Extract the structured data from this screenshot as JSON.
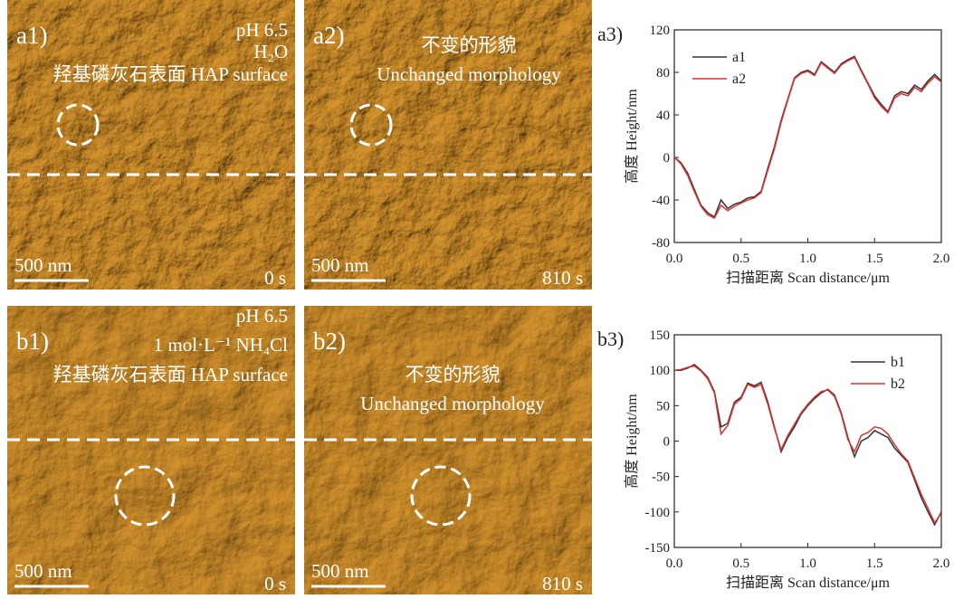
{
  "panels": [
    {
      "label": "a1)",
      "lines": [
        "pH 6.5",
        "H₂O",
        "羟基磷灰石表面 HAP surface"
      ],
      "scale_bar": "500 nm",
      "time": "0 s"
    },
    {
      "label": "a2)",
      "lines": [
        "不变的形貌",
        "Unchanged morphology"
      ],
      "scale_bar": "500 nm",
      "time": "810 s"
    },
    {
      "label": "b1)",
      "lines": [
        "pH 6.5",
        "1 mol·L⁻¹ NH₄Cl",
        "羟基磷灰石表面 HAP surface"
      ],
      "scale_bar": "500 nm",
      "time": "0 s"
    },
    {
      "label": "b2)",
      "lines": [
        "不变的形貌",
        "Unchanged morphology"
      ],
      "scale_bar": "500 nm",
      "time": "810 s"
    }
  ],
  "chart_data": [
    {
      "type": "line",
      "title": "a3)",
      "x_label": "扫描距离 Scan distance/μm",
      "y_label": "高度 Height/nm",
      "x": [
        0,
        0.05,
        0.1,
        0.15,
        0.2,
        0.25,
        0.3,
        0.35,
        0.4,
        0.45,
        0.5,
        0.55,
        0.6,
        0.65,
        0.7,
        0.75,
        0.8,
        0.85,
        0.9,
        0.95,
        1.0,
        1.05,
        1.1,
        1.15,
        1.2,
        1.25,
        1.3,
        1.35,
        1.4,
        1.45,
        1.5,
        1.55,
        1.6,
        1.65,
        1.7,
        1.75,
        1.8,
        1.85,
        1.9,
        1.95,
        2.0
      ],
      "series": [
        {
          "name": "a1",
          "color": "#333333",
          "values": [
            0,
            -5,
            -15,
            -30,
            -45,
            -52,
            -56,
            -40,
            -48,
            -44,
            -42,
            -38,
            -37,
            -32,
            -10,
            10,
            35,
            55,
            75,
            80,
            82,
            78,
            90,
            85,
            80,
            88,
            92,
            95,
            82,
            70,
            58,
            50,
            43,
            58,
            62,
            60,
            68,
            64,
            72,
            78,
            72
          ]
        },
        {
          "name": "a2",
          "color": "#e03030",
          "values": [
            0,
            -6,
            -17,
            -32,
            -46,
            -54,
            -57,
            -45,
            -50,
            -46,
            -43,
            -40,
            -38,
            -33,
            -12,
            8,
            33,
            54,
            74,
            79,
            81,
            77,
            89,
            84,
            79,
            87,
            91,
            94,
            81,
            69,
            56,
            48,
            42,
            56,
            60,
            58,
            66,
            62,
            70,
            76,
            71
          ]
        }
      ],
      "xlim": [
        0,
        2
      ],
      "ylim": [
        -80,
        120
      ],
      "xticks": [
        {
          "value": 0,
          "label": "0.0"
        },
        0.5,
        {
          "value": 1,
          "label": "1.0"
        },
        1.5,
        {
          "value": 2,
          "label": "2.0"
        }
      ],
      "yticks": [
        -80,
        -40,
        0,
        40,
        80,
        120
      ],
      "legend": "upper-left"
    },
    {
      "type": "line",
      "title": "b3)",
      "x_label": "扫描距离 Scan distance/μm",
      "y_label": "高度 Height/nm",
      "x": [
        0,
        0.05,
        0.1,
        0.15,
        0.2,
        0.25,
        0.3,
        0.35,
        0.4,
        0.45,
        0.5,
        0.55,
        0.6,
        0.65,
        0.7,
        0.75,
        0.8,
        0.85,
        0.9,
        0.95,
        1.0,
        1.05,
        1.1,
        1.15,
        1.2,
        1.25,
        1.3,
        1.35,
        1.4,
        1.45,
        1.5,
        1.55,
        1.6,
        1.65,
        1.7,
        1.75,
        1.8,
        1.85,
        1.9,
        1.95,
        2.0
      ],
      "series": [
        {
          "name": "b1",
          "color": "#333333",
          "values": [
            100,
            100,
            103,
            108,
            100,
            90,
            70,
            20,
            25,
            55,
            62,
            82,
            78,
            83,
            55,
            20,
            -15,
            5,
            20,
            38,
            50,
            60,
            68,
            73,
            65,
            40,
            5,
            -22,
            0,
            5,
            15,
            10,
            5,
            -10,
            -20,
            -30,
            -55,
            -80,
            -100,
            -118,
            -100
          ]
        },
        {
          "name": "b2",
          "color": "#e03030",
          "values": [
            100,
            101,
            104,
            106,
            99,
            88,
            68,
            10,
            22,
            52,
            60,
            80,
            76,
            80,
            52,
            18,
            -12,
            8,
            24,
            40,
            52,
            62,
            70,
            72,
            63,
            38,
            2,
            -15,
            8,
            12,
            20,
            18,
            10,
            -5,
            -18,
            -28,
            -52,
            -75,
            -95,
            -115,
            -102
          ]
        }
      ],
      "xlim": [
        0,
        2
      ],
      "ylim": [
        -150,
        150
      ],
      "xticks": [
        {
          "value": 0,
          "label": "0.0"
        },
        0.5,
        {
          "value": 1,
          "label": "1.0"
        },
        1.5,
        {
          "value": 2,
          "label": "2.0"
        }
      ],
      "yticks": [
        -150,
        -100,
        -50,
        0,
        50,
        100,
        150
      ],
      "legend": "upper-right"
    }
  ]
}
